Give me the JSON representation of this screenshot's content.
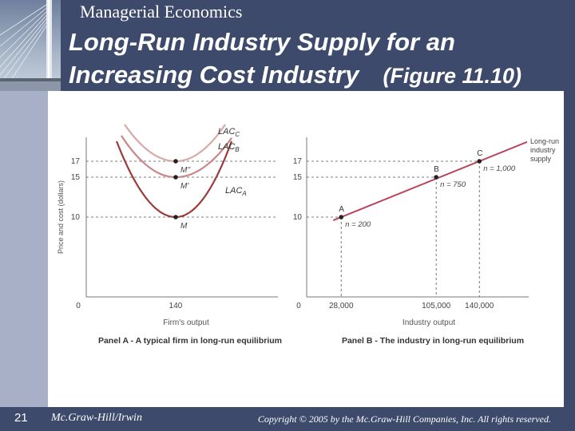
{
  "header": {
    "course": "Managerial Economics",
    "title_line1": "Long-Run Industry Supply for an",
    "title_line2": "Increasing Cost Industry",
    "title_figure": "(Figure 11.10)"
  },
  "footer": {
    "slide_number": "21",
    "publisher": "Mc.Graw-Hill/Irwin",
    "copyright": "Copyright © 2005 by the Mc.Graw-Hill Companies, Inc. All rights reserved."
  },
  "colors": {
    "background": "#3d4a6b",
    "left_bar": "#a8b0c8",
    "lac_a": "#9b3b3b",
    "lac_b": "#c98787",
    "lac_c": "#d9a9a9",
    "supply_line": "#b8455a",
    "dashed": "#555555"
  },
  "chart_data": [
    {
      "type": "line",
      "title": "Panel A - A typical firm in long-run equilibrium",
      "xlabel": "Firm's output",
      "ylabel": "Price and cost (dollars)",
      "x_ticks": [
        "0",
        "140"
      ],
      "y_ticks": [
        10,
        15,
        17
      ],
      "xlim": [
        0,
        300
      ],
      "ylim": [
        0,
        20
      ],
      "series": [
        {
          "name": "LAC",
          "subscript": "A",
          "min_point": {
            "x": 140,
            "y": 10,
            "label": "M"
          }
        },
        {
          "name": "LAC",
          "subscript": "B",
          "min_point": {
            "x": 140,
            "y": 15,
            "label": "M'"
          }
        },
        {
          "name": "LAC",
          "subscript": "C",
          "min_point": {
            "x": 140,
            "y": 17,
            "label": "M''"
          }
        }
      ]
    },
    {
      "type": "line",
      "title": "Panel B - The industry in long-run equilibrium",
      "xlabel": "Industry output",
      "x_ticks": [
        "0",
        "28,000",
        "105,000",
        "140,000"
      ],
      "y_ticks": [
        10,
        15,
        17
      ],
      "xlim": [
        0,
        180000
      ],
      "ylim": [
        0,
        20
      ],
      "series": [
        {
          "name": "Long-run industry supply",
          "points": [
            {
              "x": 28000,
              "y": 10,
              "label": "A",
              "n": "n = 200"
            },
            {
              "x": 105000,
              "y": 15,
              "label": "B",
              "n": "n = 750"
            },
            {
              "x": 140000,
              "y": 17,
              "label": "C",
              "n": "n = 1,000"
            }
          ]
        }
      ]
    }
  ]
}
